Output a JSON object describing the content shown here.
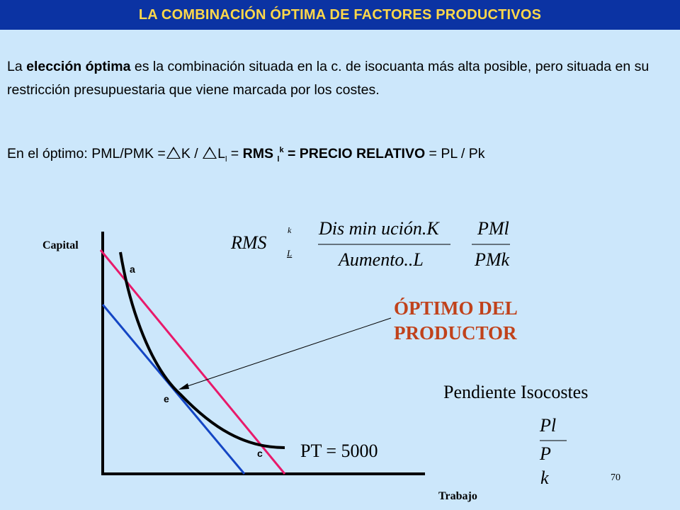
{
  "header": {
    "title": "LA COMBINACIÓN ÓPTIMA DE FACTORES PRODUCTIVOS"
  },
  "intro": {
    "pre": "La ",
    "bold": "elección óptima",
    "post": " es la combinación situada en la c. de isocuanta más alta posible, pero situada en su restricción presupuestaria que viene marcada por los costes."
  },
  "optimum_line": {
    "prefix": "En el óptimo: PML/PMK =",
    "k": "K /",
    "l": "L",
    "l_sub": "l",
    "eq1": " = ",
    "rms": "RMS",
    "rms_sub": "l",
    "rms_sup": "k",
    "bold_rest": " = PRECIO RELATIVO",
    "tail": " = PL / Pk"
  },
  "formula": {
    "rms": "RMS",
    "sup": "k",
    "sub": "L",
    "numerator": "Dis min ución.K",
    "denominator": "Aumento..L",
    "right_num": "PMl",
    "right_den": "PMk"
  },
  "chart": {
    "y_axis_label": "Capital",
    "x_axis_label": "Trabajo",
    "point_a": "a",
    "point_e": "e",
    "point_c": "c",
    "curve_label": "PT = 5000",
    "isocost_color_high": "#e8196a",
    "isocost_color_low": "#1446c4"
  },
  "producer_label": {
    "line1": "ÓPTIMO DEL",
    "line2": "PRODUCTOR"
  },
  "slope": {
    "title": "Pendiente Isocostes",
    "num": "Pl",
    "den1": "P",
    "den2": "k"
  },
  "page_number": "70"
}
